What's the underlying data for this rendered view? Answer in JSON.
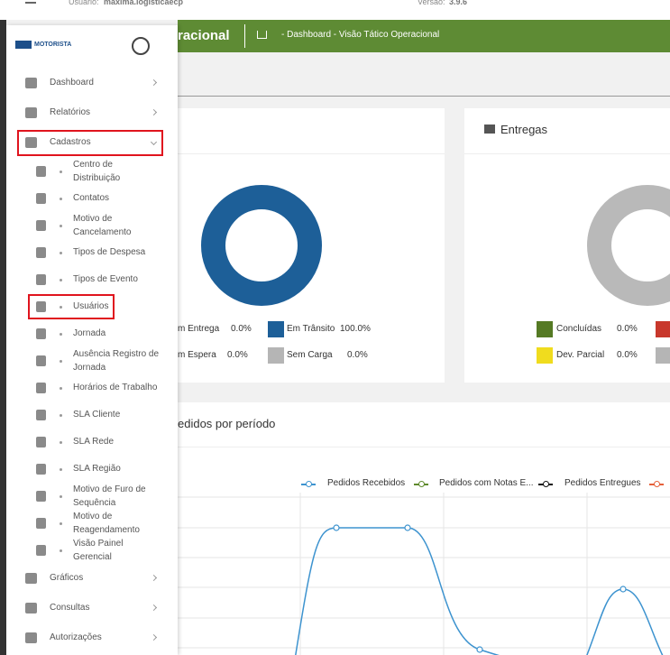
{
  "topbar": {
    "user_label": "Usuário:",
    "user": "maxima.logisticaecp",
    "version_label": "Versão:",
    "version": "3.9.6"
  },
  "header": {
    "title": "racional",
    "breadcrumb": "- Dashboard - Visão Tático Operacional"
  },
  "sidebar": {
    "logo": "MOTORISTA",
    "menu": [
      {
        "label": "Dashboard"
      },
      {
        "label": "Relatórios"
      },
      {
        "label": "Cadastros",
        "highlighted": true
      }
    ],
    "submenu": [
      {
        "lines": [
          "Centro de",
          "Distribuição"
        ]
      },
      {
        "lines": [
          "Contatos"
        ]
      },
      {
        "lines": [
          "Motivo de",
          "Cancelamento"
        ]
      },
      {
        "lines": [
          "Tipos de Despesa"
        ]
      },
      {
        "lines": [
          "Tipos de Evento"
        ]
      },
      {
        "lines": [
          "Usuários"
        ],
        "highlighted": true
      },
      {
        "lines": [
          "Jornada"
        ]
      },
      {
        "lines": [
          "Ausência Registro de",
          "Jornada"
        ]
      },
      {
        "lines": [
          "Horários de Trabalho"
        ]
      },
      {
        "lines": [
          "SLA Cliente"
        ]
      },
      {
        "lines": [
          "SLA Rede"
        ]
      },
      {
        "lines": [
          "SLA Região"
        ]
      },
      {
        "lines": [
          "Motivo de Furo de",
          "Sequência"
        ]
      },
      {
        "lines": [
          "Motivo de",
          "Reagendamento"
        ]
      },
      {
        "lines": [
          "Visão Painel",
          "Gerencial"
        ]
      }
    ],
    "menu_bottom": [
      {
        "label": "Gráficos"
      },
      {
        "label": "Consultas"
      },
      {
        "label": "Autorizações"
      }
    ]
  },
  "status_card": {
    "donut_color": "#1d5f98",
    "legend": [
      {
        "label": "m Entrega",
        "value": "0.0%"
      },
      {
        "label": "Em Trânsito",
        "value": "100.0%",
        "color": "#1d5f98"
      },
      {
        "label": "m Espera",
        "value": "0.0%"
      },
      {
        "label": "Sem Carga",
        "value": "0.0%",
        "color": "#b5b5b5"
      }
    ]
  },
  "deliveries_card": {
    "title": "Entregas",
    "donut_color": "#b9b9b9",
    "legend": [
      {
        "label": "Concluídas",
        "value": "0.0%",
        "color": "#557a24"
      },
      {
        "label": "Dev. Parcial",
        "value": "0.0%",
        "color": "#f0dc1e"
      }
    ],
    "cut_colors": [
      "#c8382c",
      "#b5b5b5"
    ]
  },
  "orders_card": {
    "title": "edidos por período",
    "series": [
      {
        "name": "Pedidos Recebidos",
        "color": "#3d93cf"
      },
      {
        "name": "Pedidos com Notas E...",
        "color": "#5f8a2c"
      },
      {
        "name": "Pedidos Entregues",
        "color": "#111111"
      },
      {
        "color": "#e5603a"
      }
    ]
  }
}
